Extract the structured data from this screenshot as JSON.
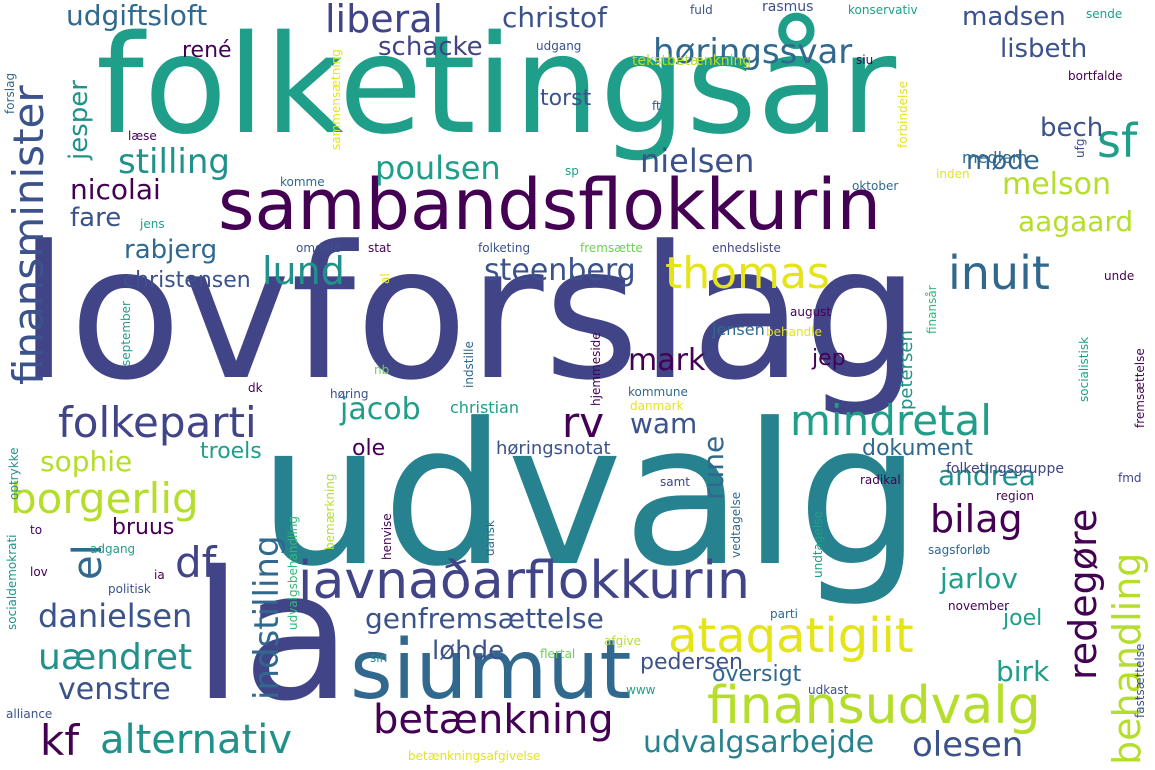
{
  "palette": {
    "dark_purple": "#440154",
    "indigo": "#3b528b",
    "slate_blue": "#414487",
    "teal_blue": "#31688e",
    "teal": "#26828e",
    "sea_green": "#21918c",
    "green": "#1f9e89",
    "jade": "#35b779",
    "light_green": "#6ece58",
    "lime": "#b5de2b",
    "yellow": "#e4e419"
  },
  "words": [
    "lovforslag",
    "udvalg",
    "folketingsår",
    "la",
    "sambandsflokkurin",
    "siumut",
    "javnaðarflokkurin",
    "finansminister",
    "ataqatigiit",
    "finansudvalg",
    "borgerlig",
    "folkeparti",
    "mindretal",
    "alternativ",
    "inuit",
    "thomas",
    "betænkning",
    "redegøre",
    "behandling",
    "udvalgsarbejde",
    "uændret",
    "lund",
    "sf",
    "kf",
    "liberal",
    "høringssvar",
    "stilling",
    "bilag",
    "danielsen",
    "venstre",
    "olesen",
    "genfremsættelse",
    "poulsen",
    "nielsen",
    "el",
    "df",
    "rv",
    "jacob",
    "indstilling",
    "steenberg",
    "mark",
    "wam",
    "rune",
    "andrea",
    "melson",
    "aagaard",
    "jarlov",
    "sophie",
    "birk",
    "løhde",
    "christof",
    "udgiftsloft",
    "schacke",
    "madsen",
    "lisbeth",
    "bech",
    "jesper",
    "nicolai",
    "rabjerg",
    "møde",
    "fare",
    "torst",
    "christensen",
    "dokument",
    "oversigt",
    "pedersen",
    "ole",
    "bruus",
    "joel",
    "troels",
    "høringsnotat",
    "jep",
    "jensen",
    "christian",
    "petersen",
    "rené",
    "medlem",
    "folketingsgruppe",
    "fremsætte",
    "folketing",
    "enhedsliste",
    "stat",
    "omdele",
    "jens",
    "komme",
    "sp",
    "læse",
    "forslag",
    "siu",
    "ft",
    "bortfalde",
    "ufg",
    "fuld",
    "konservativ",
    "sende",
    "rasmus",
    "udgang",
    "tekstbetænkning",
    "sammensætning",
    "forbindelse",
    "oktober",
    "inden",
    "september",
    "august",
    "behandle",
    "finansår",
    "unde",
    "socialistisk",
    "fremsættelse",
    "radikal",
    "region",
    "kommune",
    "danmark",
    "henvise",
    "hjemmeside",
    "indstille",
    "nb",
    "høring",
    "dk",
    "al",
    "vedtagelse",
    "undtagelse",
    "bemærkning",
    "dansk",
    "fmd",
    "sagsforløb",
    "november",
    "parti",
    "socialdemokrati",
    "to",
    "lov",
    "adgang",
    "ia",
    "politisk",
    "udvalgsbehandling",
    "afgive",
    "flertal",
    "www",
    "udkast",
    "alliance",
    "optrykke",
    "betænkningsafgivelse",
    "fastsættelse",
    "sin",
    "samt"
  ]
}
